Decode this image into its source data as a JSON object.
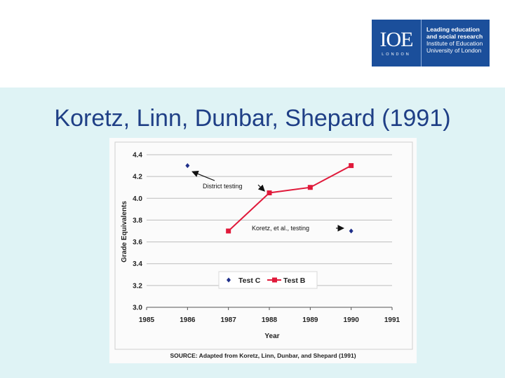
{
  "slide": {
    "title": "Koretz, Linn, Dunbar, Shepard (1991)",
    "logo": {
      "mark": "IOE",
      "mark_sub": "LONDON",
      "line1": "Leading education",
      "line2": "and social research",
      "line3": "Institute of Education",
      "line4": "University of London"
    },
    "colors": {
      "title": "#1f3f86",
      "band": "#dff3f5",
      "logo": "#1b4f9b"
    }
  },
  "chart_data": {
    "type": "line",
    "title": "",
    "xlabel": "Year",
    "ylabel": "Grade Equivalents",
    "xlim": [
      1985,
      1991
    ],
    "ylim": [
      3.0,
      4.4
    ],
    "x_ticks": [
      "1985",
      "1986",
      "1987",
      "1988",
      "1989",
      "1990",
      "1991"
    ],
    "y_ticks": [
      "3.0",
      "3.2",
      "3.4",
      "3.6",
      "3.8",
      "4.0",
      "4.2",
      "4.4"
    ],
    "grid": "horizontal",
    "legend": "bottom-center",
    "series": [
      {
        "name": "Test C",
        "color": "#1f2f8a",
        "marker": "diamond",
        "line": false,
        "points": [
          {
            "x": 1986,
            "y": 4.3
          },
          {
            "x": 1990,
            "y": 3.7
          }
        ]
      },
      {
        "name": "Test B",
        "color": "#e0193a",
        "marker": "square",
        "line": true,
        "points": [
          {
            "x": 1987,
            "y": 3.7
          },
          {
            "x": 1988,
            "y": 4.05
          },
          {
            "x": 1989,
            "y": 4.1
          },
          {
            "x": 1990,
            "y": 4.3
          }
        ]
      }
    ],
    "annotations": [
      {
        "text": "District testing",
        "target": {
          "x": 1986.05,
          "y": 4.27
        },
        "target2": {
          "x": 1987.95,
          "y": 4.06
        }
      },
      {
        "text": "Koretz, et al., testing",
        "target": {
          "x": 1989.95,
          "y": 3.71
        }
      }
    ],
    "source": "SOURCE: Adapted from Koretz, Linn, Dunbar, and Shepard (1991)"
  }
}
